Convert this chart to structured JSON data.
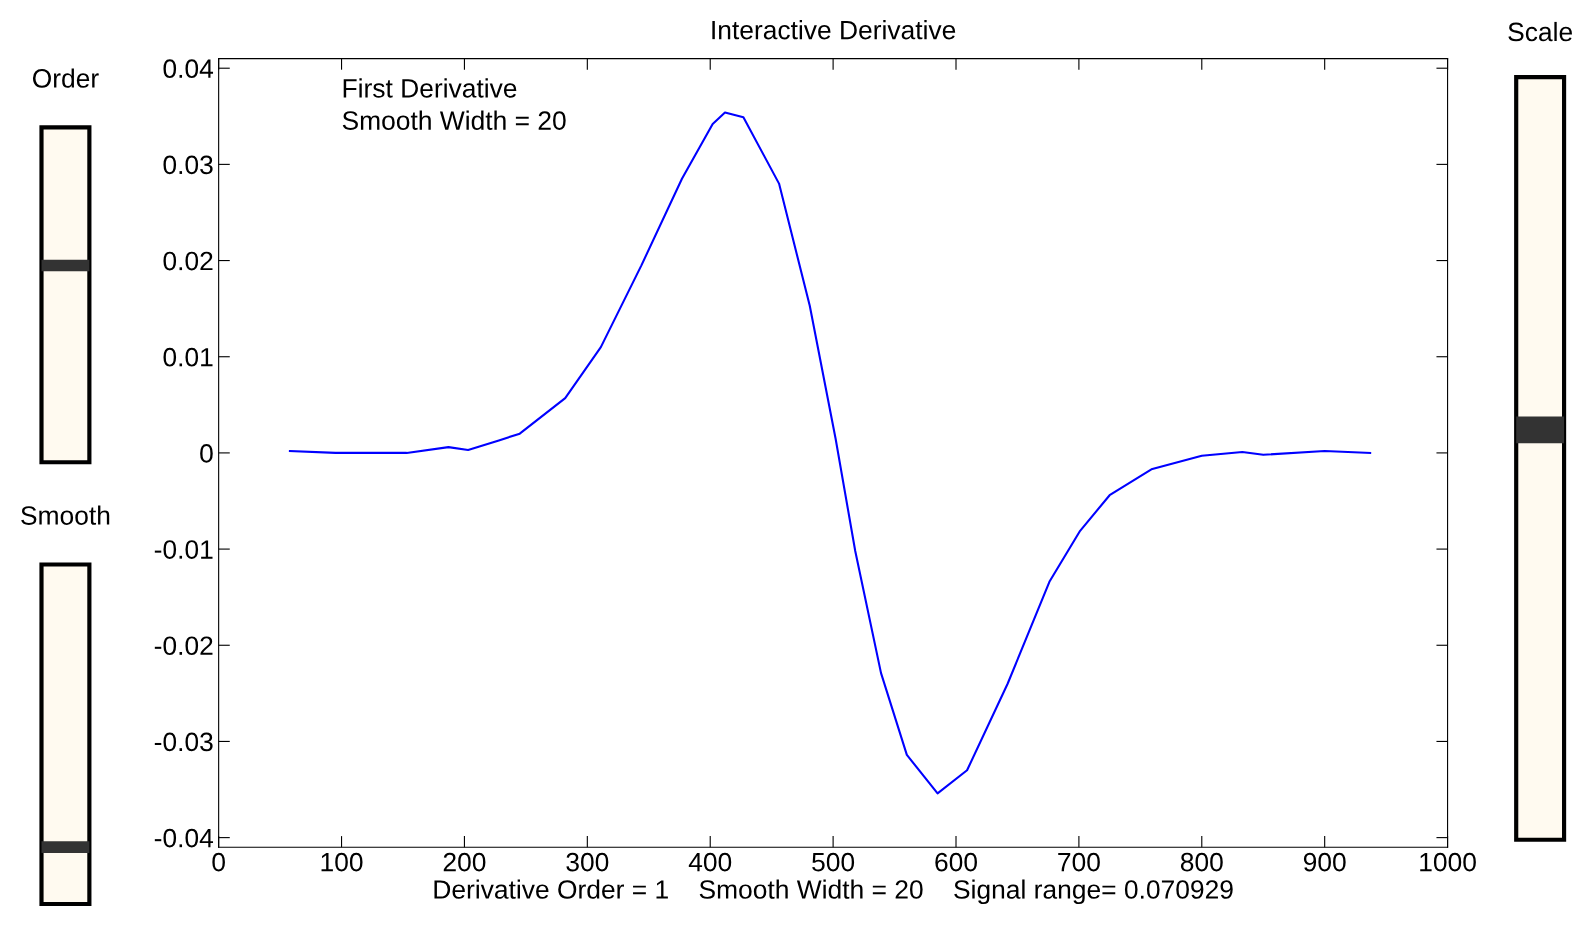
{
  "chart_data": {
    "type": "line",
    "title": "Interactive Derivative",
    "xlabel": "Derivative Order = 1    Smooth Width = 20    Signal range= 0.070929",
    "annotations": [
      "First Derivative",
      "Smooth Width = 20",
      "Order",
      "Smooth",
      "Scale"
    ],
    "xlim": [
      0,
      1000
    ],
    "xticks": [
      0,
      100,
      200,
      300,
      400,
      500,
      600,
      700,
      800,
      900,
      1000
    ],
    "ylim": [
      -0.041,
      0.041
    ],
    "yticks": [
      -0.04,
      -0.03,
      -0.02,
      -0.01,
      0,
      0.01,
      0.02,
      0.03,
      0.04
    ],
    "grid": false,
    "legend": false,
    "marker": "none",
    "line_style": "solid",
    "series": [
      {
        "color": "#0000ff",
        "x": [
          58,
          95,
          153,
          187,
          203,
          228,
          245,
          282,
          311,
          344,
          377,
          402,
          412,
          427,
          456,
          481,
          502,
          518,
          539,
          560,
          585,
          609,
          642,
          676,
          701,
          725,
          759,
          800,
          833,
          850,
          900,
          937
        ],
        "values": [
          0.0002,
          0,
          0,
          0.0006,
          0.0003,
          0.0013,
          0.002,
          0.0057,
          0.011,
          0.0195,
          0.0285,
          0.0342,
          0.0354,
          0.0349,
          0.028,
          0.0153,
          0.0015,
          -0.0102,
          -0.0229,
          -0.0314,
          -0.0354,
          -0.033,
          -0.024,
          -0.0134,
          -0.0081,
          -0.0044,
          -0.0017,
          -0.0003,
          0.0001,
          -0.0002,
          0.0002,
          0
        ]
      }
    ]
  }
}
